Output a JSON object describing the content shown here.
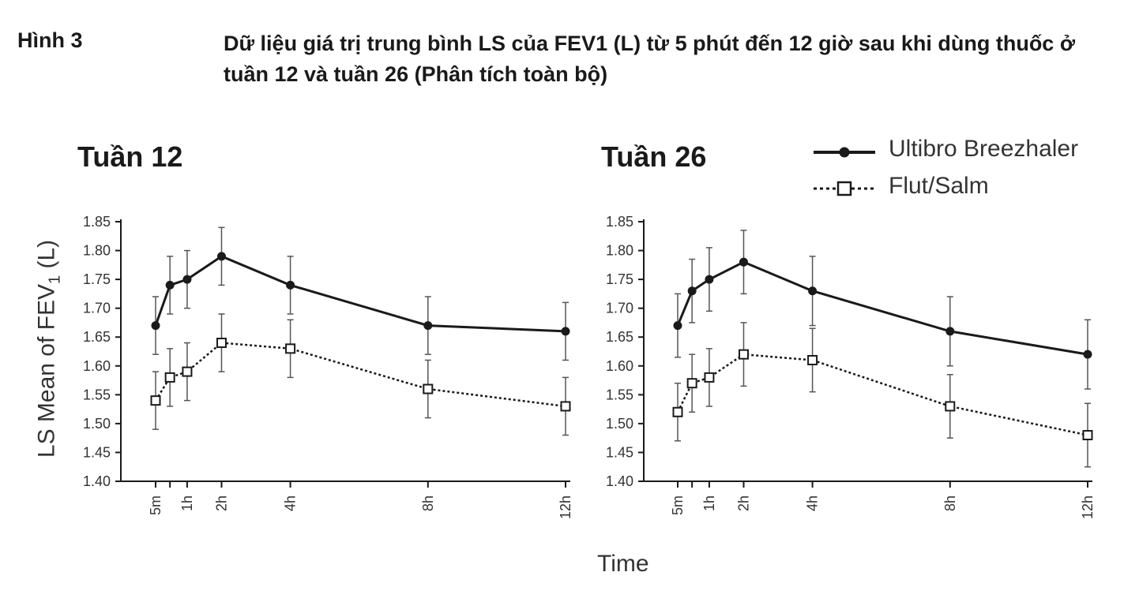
{
  "figure": {
    "label": "Hình 3",
    "title": "Dữ liệu giá trị trung bình LS của FEV1 (L) từ 5 phút đến 12 giờ sau khi dùng thuốc ở tuần 12 và tuần 26 (Phân tích toàn bộ)"
  },
  "legend": {
    "ultibro": "Ultibro Breezhaler",
    "flutsalm": "Flut/Salm"
  },
  "axes": {
    "ylabel_prefix": "LS Mean of FEV",
    "ylabel_sub": "1",
    "ylabel_suffix": " (L)",
    "xlabel": "Time"
  },
  "colors": {
    "line": "#1a1a1a",
    "marker_fill_open": "#ffffff"
  },
  "chart_data": [
    {
      "type": "line",
      "title": "Tuần 12",
      "x": [
        0.083,
        0.5,
        1,
        2,
        4,
        8,
        12
      ],
      "x_tick_labels": [
        "5m",
        "",
        "1h",
        "2h",
        "4h",
        "8h",
        "12h"
      ],
      "xlabel": "Time",
      "ylabel": "LS Mean of FEV1 (L)",
      "ylim": [
        1.4,
        1.85
      ],
      "y_ticks": [
        "1.40",
        "1.45",
        "1.50",
        "1.55",
        "1.60",
        "1.65",
        "1.70",
        "1.75",
        "1.80",
        "1.85"
      ],
      "series": [
        {
          "name": "Ultibro Breezhaler",
          "style": "solid-filled-circle",
          "values": [
            1.67,
            1.74,
            1.75,
            1.79,
            1.74,
            1.67,
            1.66
          ],
          "err": [
            0.05,
            0.05,
            0.05,
            0.05,
            0.05,
            0.05,
            0.05
          ]
        },
        {
          "name": "Flut/Salm",
          "style": "dotted-open-square",
          "values": [
            1.54,
            1.58,
            1.59,
            1.64,
            1.63,
            1.56,
            1.53
          ],
          "err": [
            0.05,
            0.05,
            0.05,
            0.05,
            0.05,
            0.05,
            0.05
          ]
        }
      ]
    },
    {
      "type": "line",
      "title": "Tuần 26",
      "x": [
        0.083,
        0.5,
        1,
        2,
        4,
        8,
        12
      ],
      "x_tick_labels": [
        "5m",
        "",
        "1h",
        "2h",
        "4h",
        "8h",
        "12h"
      ],
      "xlabel": "Time",
      "ylabel": "LS Mean of FEV1 (L)",
      "ylim": [
        1.4,
        1.85
      ],
      "y_ticks": [
        "1.40",
        "1.45",
        "1.50",
        "1.55",
        "1.60",
        "1.65",
        "1.70",
        "1.75",
        "1.80",
        "1.85"
      ],
      "series": [
        {
          "name": "Ultibro Breezhaler",
          "style": "solid-filled-circle",
          "values": [
            1.67,
            1.73,
            1.75,
            1.78,
            1.73,
            1.66,
            1.62
          ],
          "err": [
            0.055,
            0.055,
            0.055,
            0.055,
            0.06,
            0.06,
            0.06
          ]
        },
        {
          "name": "Flut/Salm",
          "style": "dotted-open-square",
          "values": [
            1.52,
            1.57,
            1.58,
            1.62,
            1.61,
            1.53,
            1.48
          ],
          "err": [
            0.05,
            0.05,
            0.05,
            0.055,
            0.055,
            0.055,
            0.055
          ]
        }
      ]
    }
  ]
}
